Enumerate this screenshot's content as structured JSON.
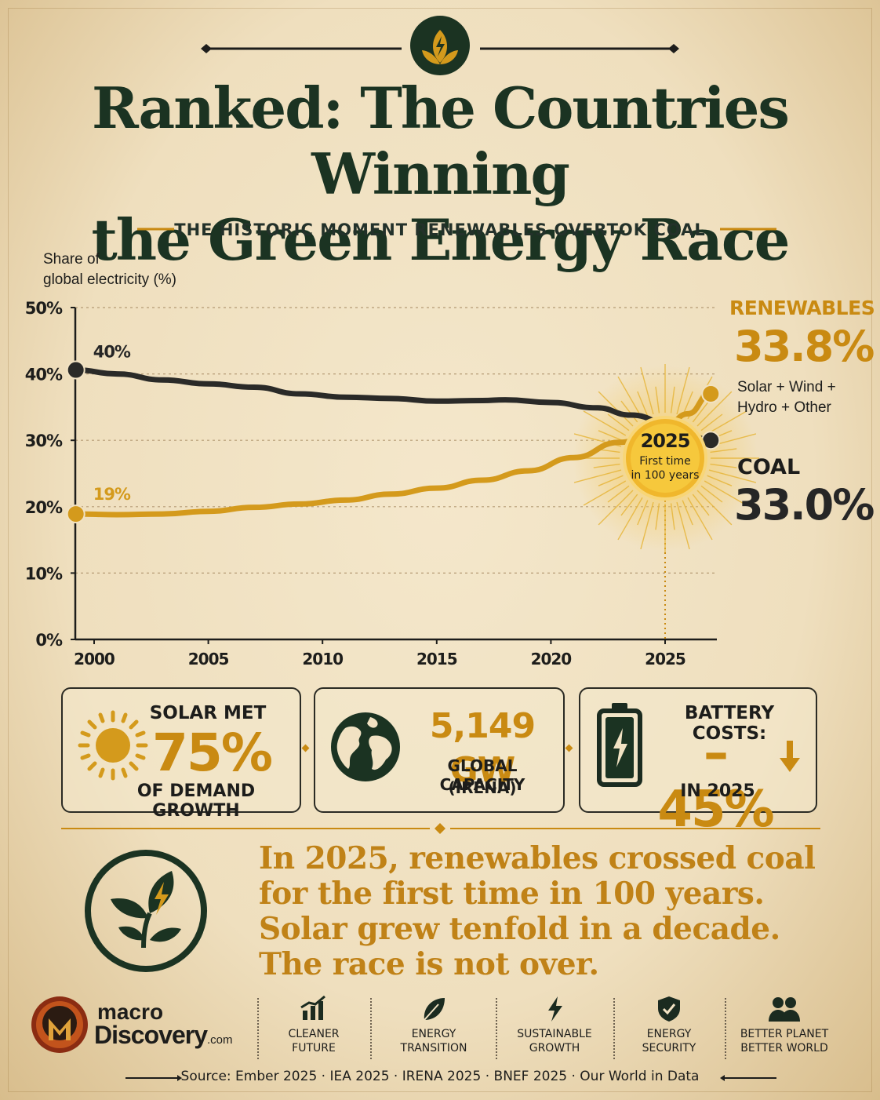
{
  "header": {
    "title_line1": "Ranked: The Countries Winning",
    "title_line2": "the Green Energy Race",
    "subtitle": "THE HISTORIC MOMENT RENEWABLES OVERTOK COAL"
  },
  "chart_data": {
    "type": "line",
    "ylabel_line1": "Share of",
    "ylabel_line2": "global electricity (%)",
    "ylim": [
      0,
      50
    ],
    "xlim": [
      1999,
      2027
    ],
    "y_ticks": [
      "0%",
      "10%",
      "20%",
      "30%",
      "40%",
      "50%"
    ],
    "x_ticks": [
      "2000",
      "2005",
      "2010",
      "2015",
      "2020",
      "2025"
    ],
    "grid": true,
    "series": [
      {
        "name": "Coal",
        "color": "#2a2a28",
        "x": [
          1999.2,
          2001,
          2003,
          2005,
          2007,
          2009,
          2011,
          2013,
          2015,
          2017,
          2018,
          2020,
          2022,
          2023.5,
          2025.5,
          2027
        ],
        "y": [
          40.6,
          40.0,
          39.1,
          38.5,
          38.0,
          37.0,
          36.5,
          36.3,
          35.9,
          36.0,
          36.1,
          35.7,
          34.9,
          33.8,
          32.0,
          30.0
        ]
      },
      {
        "name": "Renewables",
        "color": "#d49a1c",
        "x": [
          1999.2,
          2001,
          2003,
          2005,
          2007,
          2009,
          2011,
          2013,
          2015,
          2017,
          2019,
          2021,
          2023,
          2025,
          2026,
          2027
        ],
        "y": [
          18.9,
          18.8,
          18.9,
          19.3,
          19.9,
          20.4,
          21.0,
          21.9,
          22.8,
          24.0,
          25.4,
          27.4,
          29.7,
          32.0,
          34.0,
          37.0
        ]
      }
    ],
    "annotations": {
      "coal_start": "40%",
      "ren_start": "19%",
      "crossing_year": "2025",
      "crossing_text_line1": "First time",
      "crossing_text_line2": "in 100 years"
    },
    "renewables_label": "RENEWABLES",
    "renewables_value": "33.8%",
    "renewables_sub_line1": "Solar + Wind +",
    "renewables_sub_line2": "Hydro + Other",
    "coal_label": "COAL",
    "coal_value": "33.0%"
  },
  "stats": {
    "solar": {
      "top": "SOLAR MET",
      "big": "75%",
      "bottom": "OF DEMAND GROWTH"
    },
    "capacity": {
      "big": "5,149 GW",
      "line1": "GLOBAL CAPACITY",
      "line2": "(IRENA)"
    },
    "battery": {
      "top": "BATTERY COSTS:",
      "big": "–45%",
      "bottom": "IN 2025"
    }
  },
  "message": {
    "line1": "In 2025, renewables crossed coal",
    "line2": "for the first time in 100 years.",
    "line3": "Solar grew tenfold in a decade.",
    "line4": "The race is not over."
  },
  "footer": {
    "brand_line1": "macro",
    "brand_line2": "Discovery",
    "brand_suffix": ".com",
    "badges": [
      {
        "icon": "growth-chart-icon",
        "line1": "CLEANER",
        "line2": "FUTURE"
      },
      {
        "icon": "leaf-icon",
        "line1": "ENERGY",
        "line2": "TRANSITION"
      },
      {
        "icon": "lightning-icon",
        "line1": "SUSTAINABLE",
        "line2": "GROWTH"
      },
      {
        "icon": "shield-check-icon",
        "line1": "ENERGY",
        "line2": "SECURITY"
      },
      {
        "icon": "people-icon",
        "line1": "BETTER PLANET",
        "line2": "BETTER WORLD"
      }
    ],
    "source": "Source: Ember 2025 · IEA 2025 · IRENA 2025 · BNEF 2025 · Our World in Data"
  },
  "colors": {
    "accent": "#c98a12",
    "dark_green": "#1b3322",
    "coal": "#2a2a28"
  }
}
